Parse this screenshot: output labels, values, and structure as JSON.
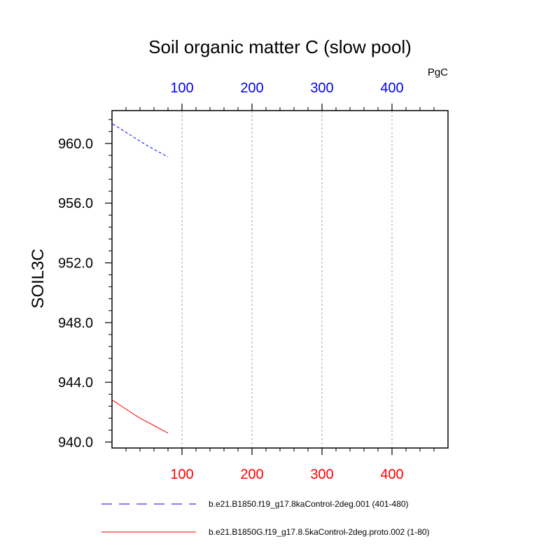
{
  "chart_data": {
    "type": "line",
    "title": "Soil organic matter C (slow pool)",
    "units": "PgC",
    "ylabel": "SOIL3C",
    "xlim": [
      0,
      480
    ],
    "ylim": [
      939.6,
      962.2
    ],
    "y_ticks": [
      940.0,
      944.0,
      948.0,
      952.0,
      956.0,
      960.0
    ],
    "y_tick_labels": [
      "940.0",
      "944.0",
      "948.0",
      "952.0",
      "956.0",
      "960.0"
    ],
    "x_ticks": [
      100,
      200,
      300,
      400
    ],
    "x_tick_labels": [
      "100",
      "200",
      "300",
      "400"
    ],
    "top_axis_color": "#0000ff",
    "bottom_axis_color": "#ff0000",
    "grid": "vertical dashed",
    "legend_position": "bottom",
    "series": [
      {
        "name": "b.e21.B1850.f19_g17.8kaControl-2deg.001 (401-480)",
        "color": "#0000ff",
        "dash": "dashed",
        "x": [
          1,
          20,
          40,
          60,
          80
        ],
        "y": [
          961.3,
          960.75,
          960.15,
          959.6,
          959.1
        ]
      },
      {
        "name": "b.e21.B1850G.f19_g17.8.5kaControl-2deg.proto.002 (1-80)",
        "color": "#ff0000",
        "dash": "solid",
        "x": [
          1,
          20,
          40,
          60,
          80
        ],
        "y": [
          942.8,
          942.2,
          941.6,
          941.1,
          940.6
        ]
      }
    ]
  }
}
